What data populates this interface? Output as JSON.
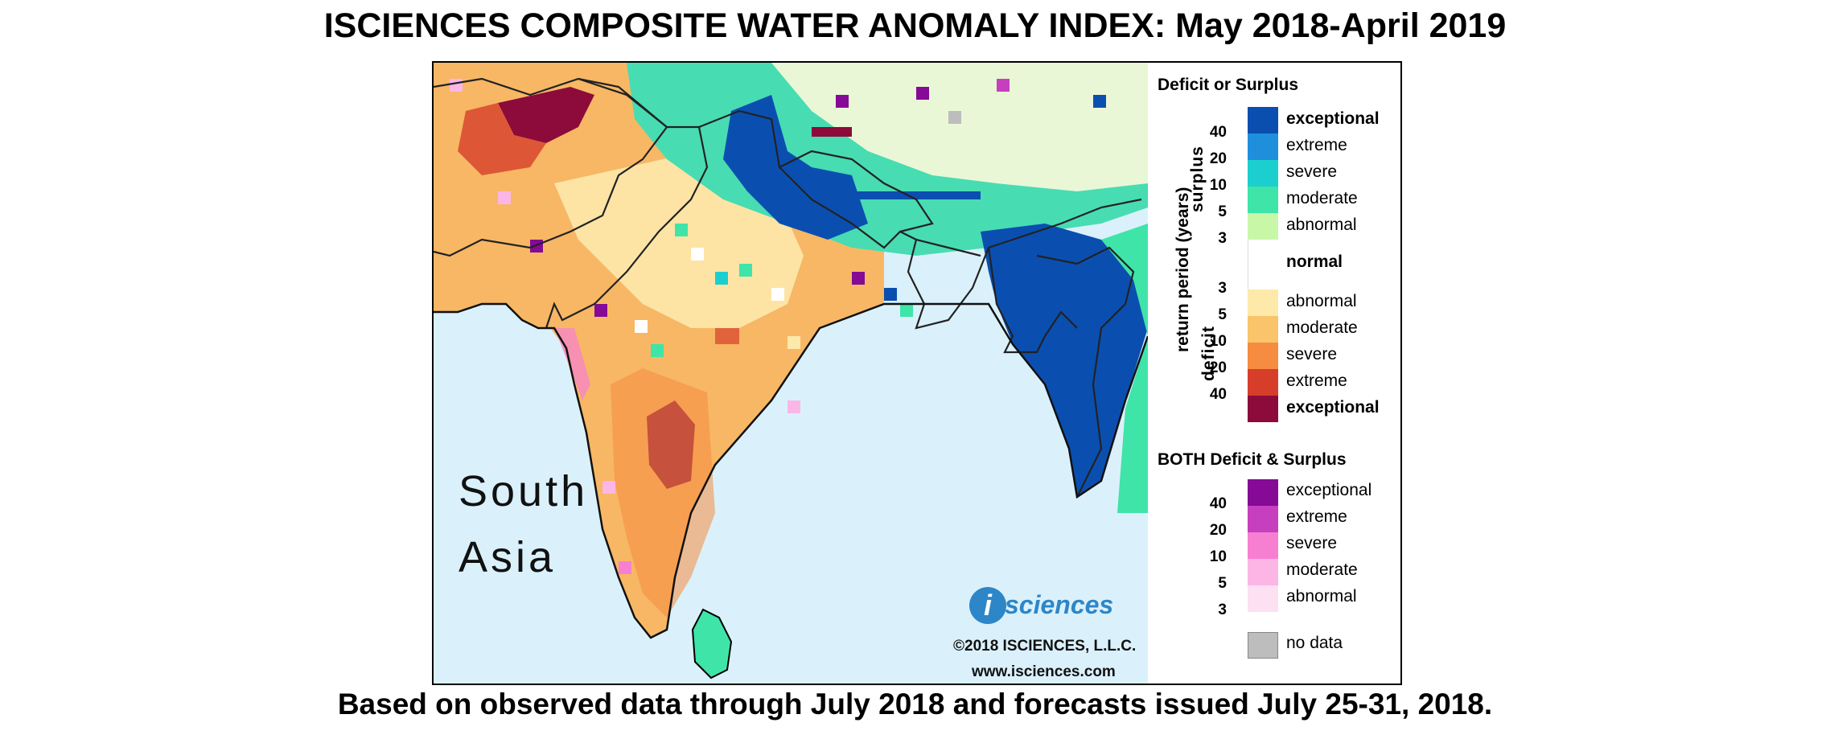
{
  "title": "ISCIENCES COMPOSITE WATER ANOMALY INDEX: May 2018-April 2019",
  "footer": "Based on observed data through July 2018 and forecasts issued July 25-31, 2018.",
  "map": {
    "region_line1": "South",
    "region_line2": "Asia",
    "logo_letter": "i",
    "logo_word": "sciences",
    "copyright": "©2018 ISCIENCES, L.L.C.",
    "url": "www.isciences.com"
  },
  "legend": {
    "section1_title": "Deficit or Surplus",
    "axis_label": "return period (years)",
    "surplus_label": "surplus",
    "deficit_label": "deficit",
    "surplus": [
      {
        "label": "exceptional",
        "color": "#0a4fb0",
        "bold": true
      },
      {
        "label": "extreme",
        "color": "#1f8fdc",
        "bold": false
      },
      {
        "label": "severe",
        "color": "#1ccfcf",
        "bold": false
      },
      {
        "label": "moderate",
        "color": "#3fe4a8",
        "bold": false
      },
      {
        "label": "abnormal",
        "color": "#c9f7a8",
        "bold": false
      }
    ],
    "normal": {
      "label": "normal",
      "color": "#ffffff"
    },
    "deficit": [
      {
        "label": "abnormal",
        "color": "#fde9a9",
        "bold": false
      },
      {
        "label": "moderate",
        "color": "#f9c46a",
        "bold": false
      },
      {
        "label": "severe",
        "color": "#f58c3f",
        "bold": false
      },
      {
        "label": "extreme",
        "color": "#d63e2a",
        "bold": false
      },
      {
        "label": "exceptional",
        "color": "#8c0b3a",
        "bold": true
      }
    ],
    "surplus_ticks": [
      "40",
      "20",
      "10",
      "5",
      "3"
    ],
    "deficit_ticks": [
      "3",
      "5",
      "10",
      "20",
      "40"
    ],
    "section2_title": "BOTH Deficit & Surplus",
    "both": [
      {
        "label": "exceptional",
        "color": "#850a96"
      },
      {
        "label": "extreme",
        "color": "#c63fbf"
      },
      {
        "label": "severe",
        "color": "#f77fd2"
      },
      {
        "label": "moderate",
        "color": "#fbb6e6"
      },
      {
        "label": "abnormal",
        "color": "#fde0f2"
      }
    ],
    "both_ticks": [
      "40",
      "20",
      "10",
      "5",
      "3"
    ],
    "nodata": {
      "label": "no data",
      "color": "#bdbdbd"
    }
  }
}
